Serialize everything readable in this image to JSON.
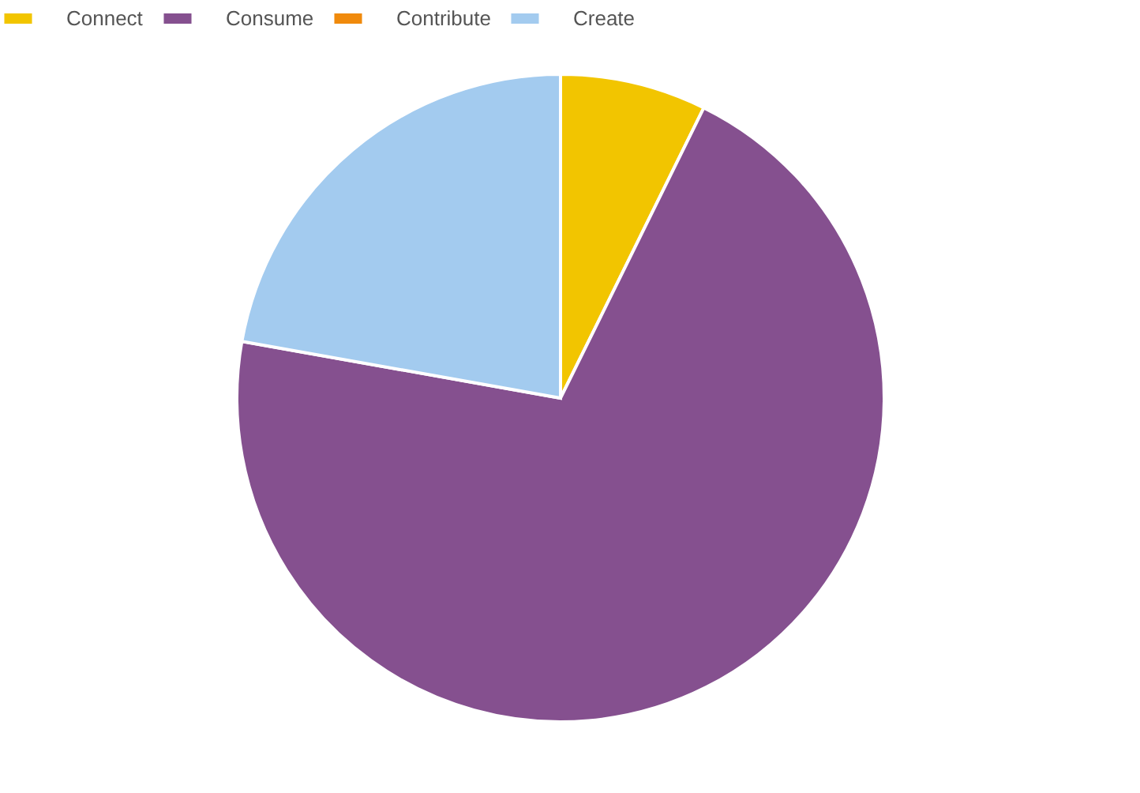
{
  "chart_data": {
    "type": "pie",
    "categories": [
      "Connect",
      "Consume",
      "Contribute",
      "Create"
    ],
    "values": [
      7.3,
      70.5,
      0,
      22.2
    ],
    "colors": [
      "#f2c500",
      "#85508f",
      "#f08a0c",
      "#a3cbef"
    ],
    "legend": "top"
  }
}
